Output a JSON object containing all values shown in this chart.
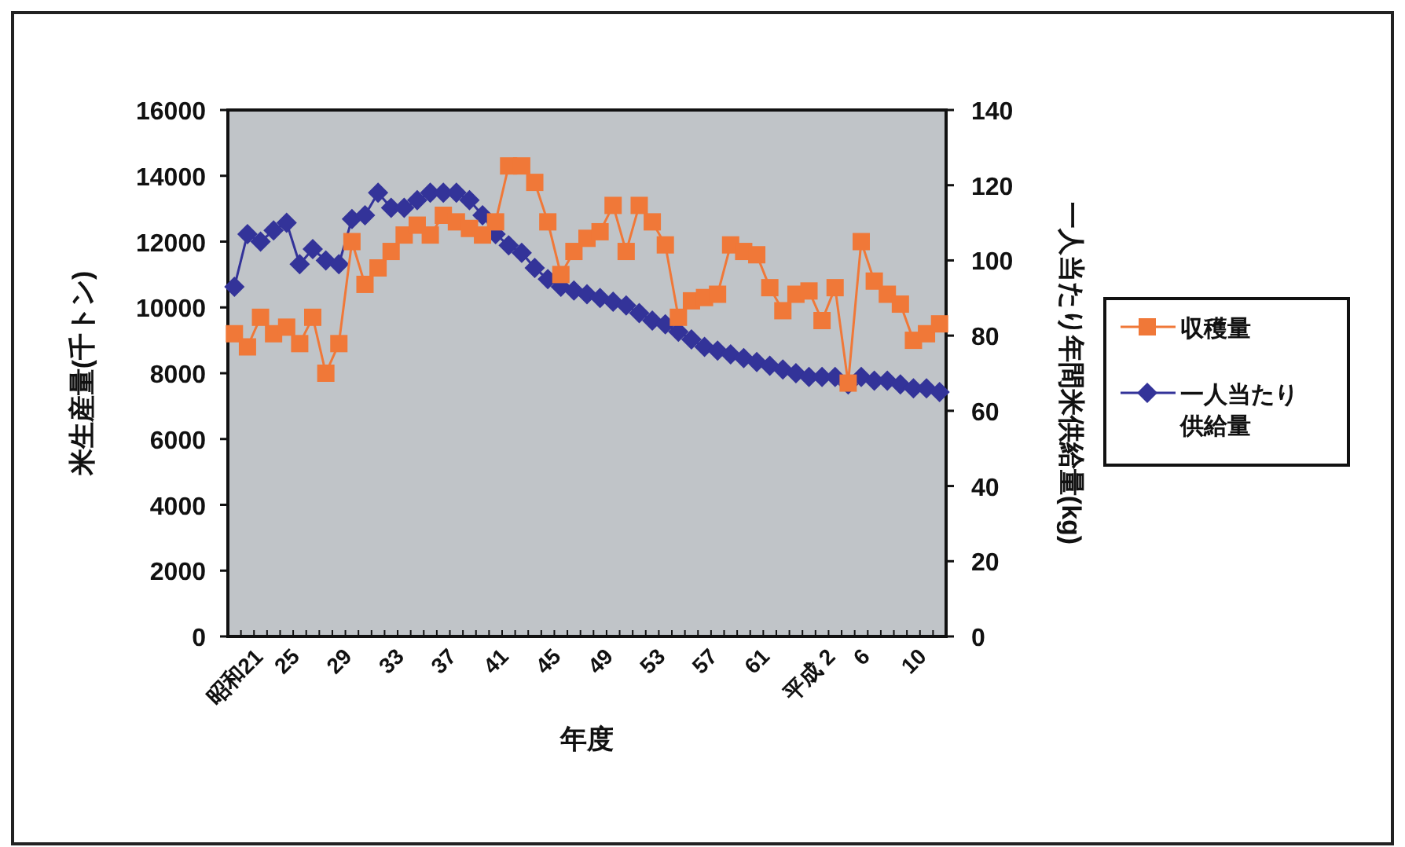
{
  "chart_data": {
    "type": "line",
    "categories": [
      "昭和21",
      null,
      null,
      null,
      "25",
      null,
      null,
      null,
      "29",
      null,
      null,
      null,
      "33",
      null,
      null,
      null,
      "37",
      null,
      null,
      null,
      "41",
      null,
      null,
      null,
      "45",
      null,
      null,
      null,
      "49",
      null,
      null,
      null,
      "53",
      null,
      null,
      null,
      "57",
      null,
      null,
      null,
      "61",
      null,
      null,
      null,
      "平成 2",
      null,
      null,
      null,
      "6",
      null,
      null,
      null,
      "10",
      null,
      null
    ],
    "series": [
      {
        "name": "収穫量",
        "color": "#f07838",
        "marker": "square",
        "values": [
          9200,
          8800,
          9700,
          9200,
          9400,
          8900,
          9700,
          8000,
          8900,
          12000,
          10700,
          11200,
          11700,
          12200,
          12500,
          12200,
          12800,
          12600,
          12400,
          12200,
          12600,
          14300,
          14300,
          13800,
          12600,
          11000,
          11700,
          12100,
          12300,
          13100,
          11700,
          13100,
          12600,
          11900,
          9700,
          10200,
          10300,
          10400,
          11900,
          11700,
          11600,
          10600,
          9900,
          10400,
          10500,
          9600,
          10600,
          7700,
          12000,
          10800,
          10400,
          10100,
          9000,
          9200,
          9500
        ]
      },
      {
        "name": "一人当たり供給量",
        "color": "#333399",
        "marker": "diamond",
        "axis": "y2",
        "values": [
          93,
          107,
          105,
          108,
          110,
          99,
          103,
          100,
          99,
          111,
          112,
          118,
          114,
          114,
          116,
          118,
          118,
          118,
          116,
          112,
          107,
          104,
          102,
          98,
          95,
          93,
          92,
          91,
          90,
          89,
          88,
          86,
          84,
          83,
          81,
          79,
          77,
          76,
          75,
          74,
          73,
          72,
          71,
          70,
          69,
          69,
          69,
          67,
          69,
          68,
          68,
          67,
          66,
          66,
          65
        ]
      }
    ],
    "xlabel": "年度",
    "ylabel": "米生産量(千トン)",
    "y2label": "一人当たり年間米供給量(kg)",
    "ylim": [
      0,
      16000
    ],
    "yticks": [
      0,
      2000,
      4000,
      6000,
      8000,
      10000,
      12000,
      14000,
      16000
    ],
    "y2lim": [
      0,
      140
    ],
    "y2ticks": [
      0,
      20,
      40,
      60,
      80,
      100,
      120,
      140
    ],
    "legend": "right",
    "grid": false
  }
}
